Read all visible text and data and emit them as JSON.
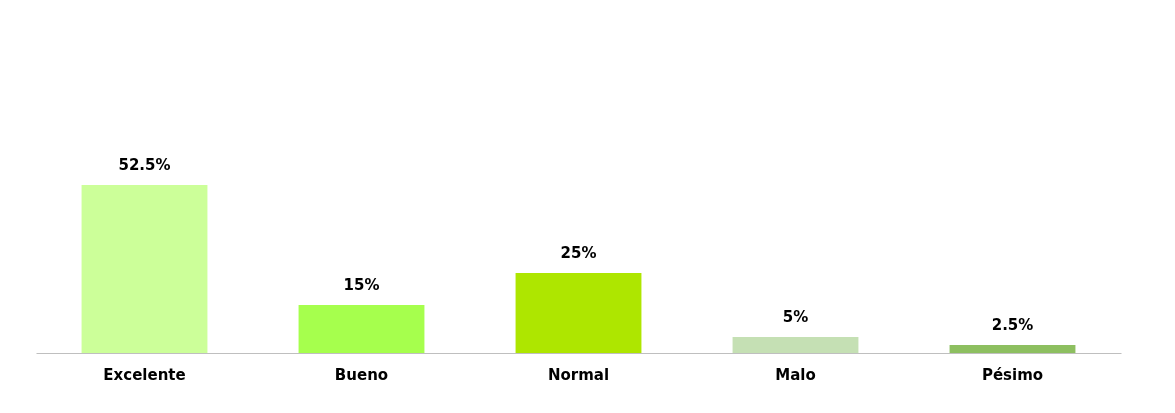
{
  "chart_data": {
    "type": "bar",
    "categories": [
      "Excelente",
      "Bueno",
      "Normal",
      "Malo",
      "Pésimo"
    ],
    "values": [
      52.5,
      15,
      25,
      5,
      2.5
    ],
    "colors": [
      "#ccff99",
      "#a6ff4d",
      "#aee600",
      "#c5e0b4",
      "#8dbf60"
    ],
    "value_labels": [
      "52.5%",
      "15%",
      "25%",
      "5%",
      "2.5%"
    ]
  }
}
